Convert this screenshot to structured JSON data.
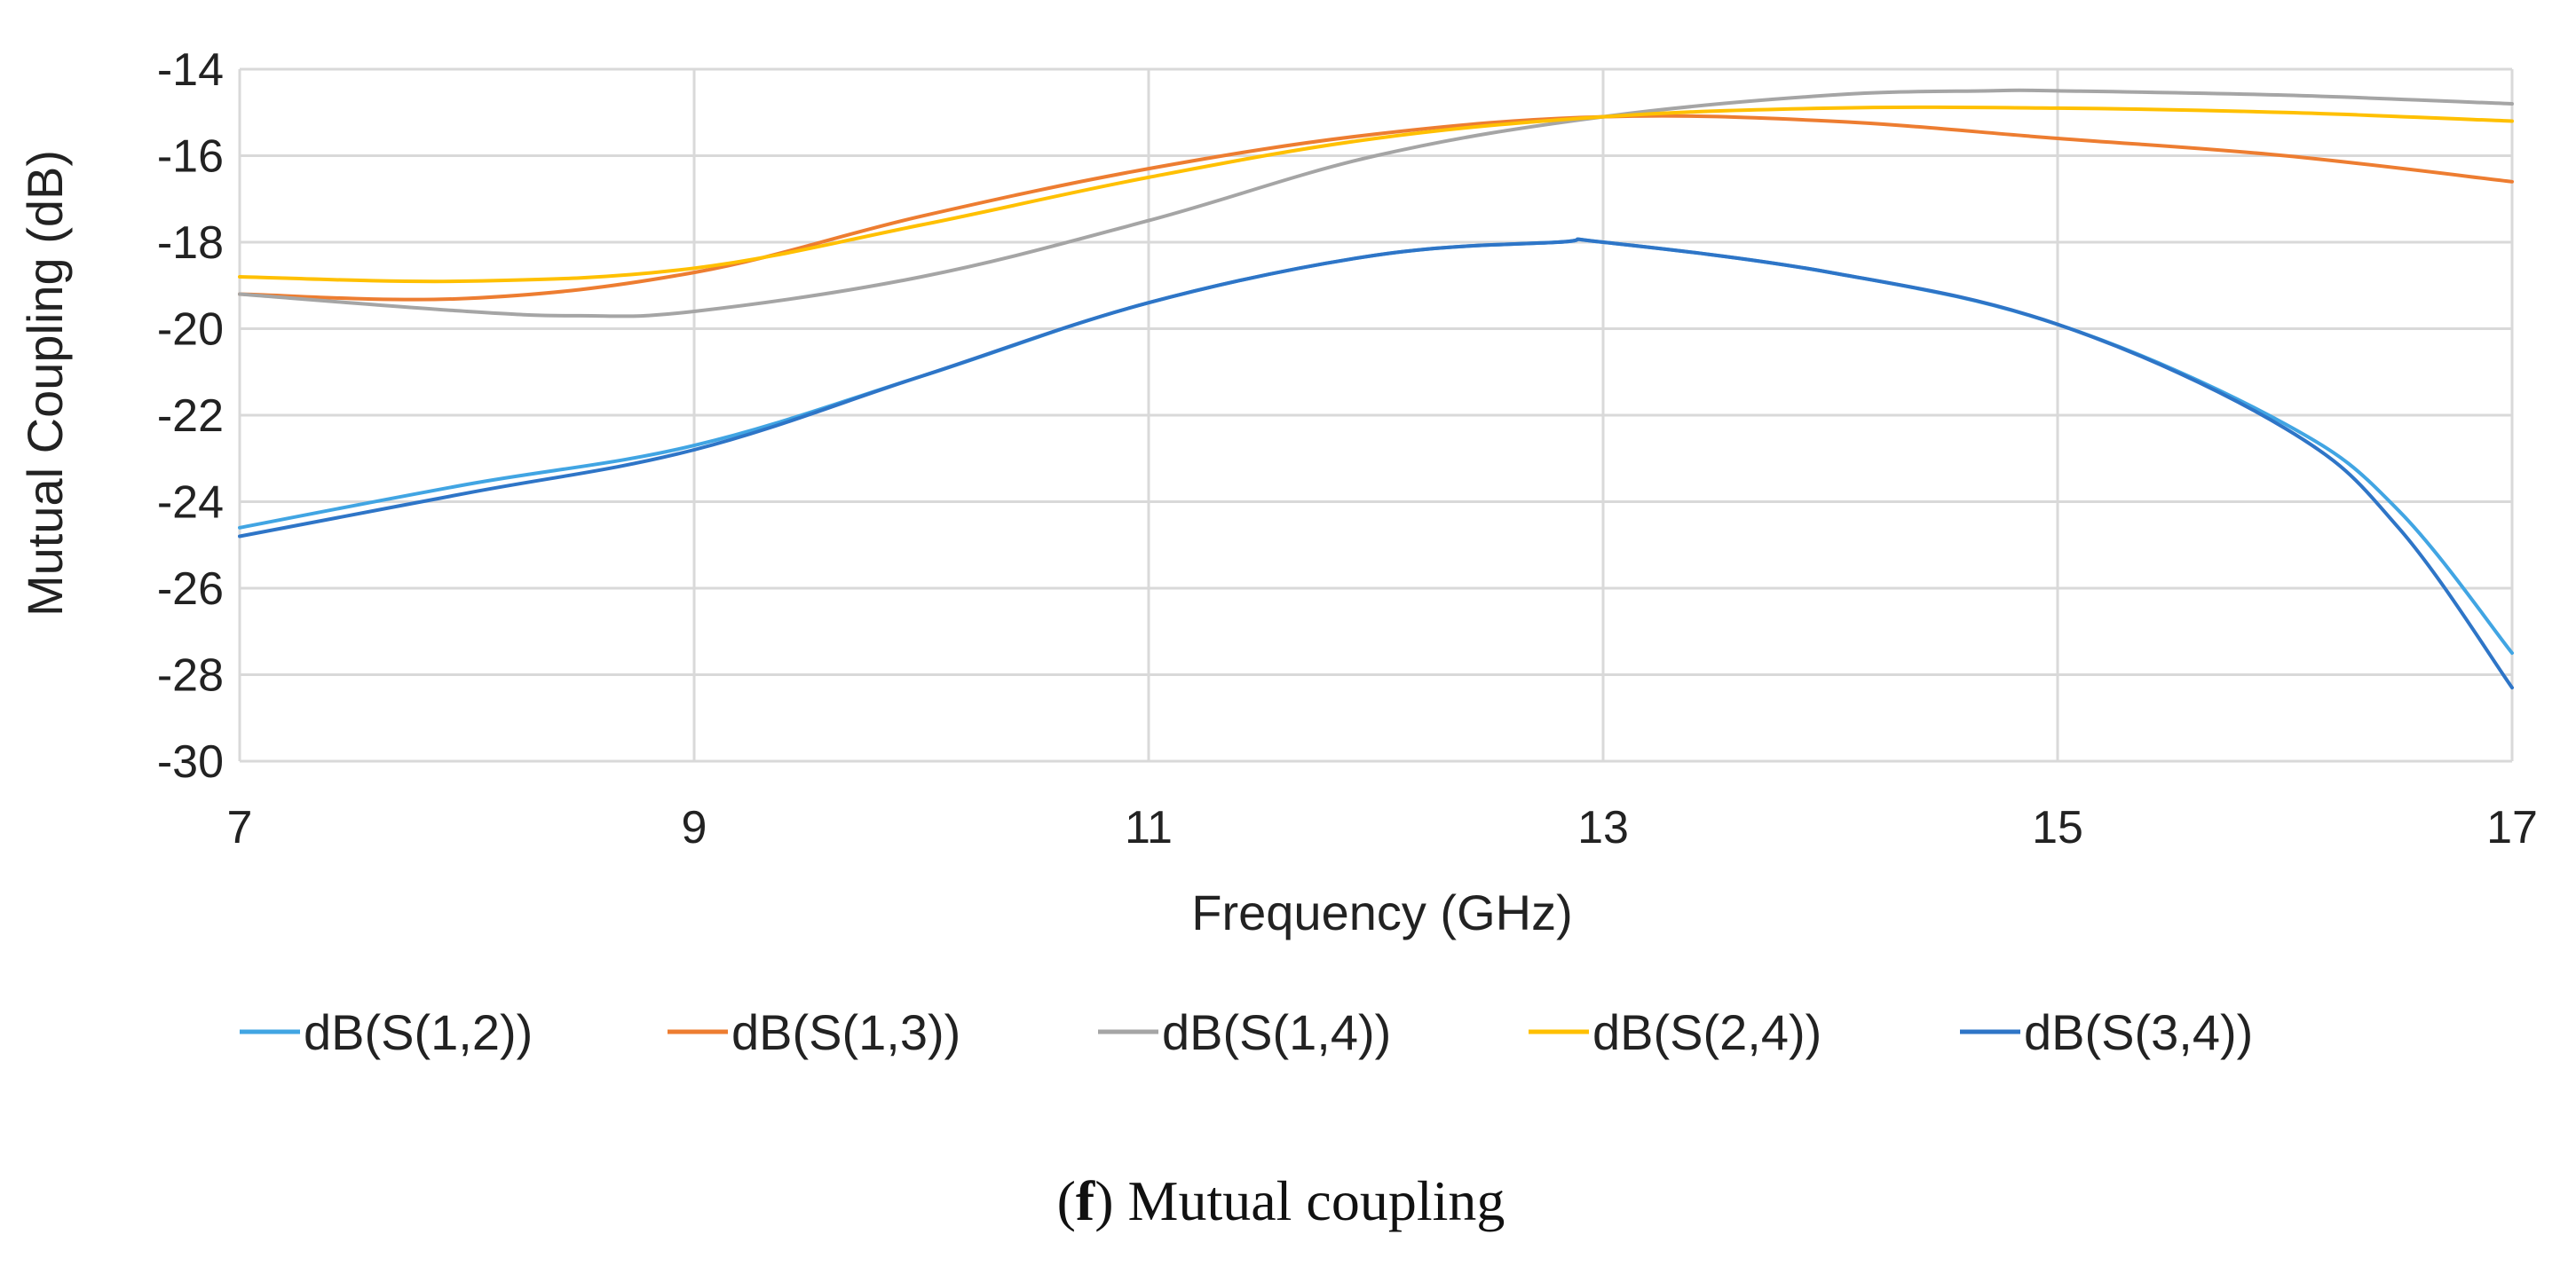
{
  "chart_data": {
    "type": "line",
    "title": "",
    "xlabel": "Frequency (GHz)",
    "ylabel": "Mutual Coupling (dB)",
    "xlim": [
      7,
      17
    ],
    "ylim": [
      -30,
      -14
    ],
    "xticks": [
      7,
      9,
      11,
      13,
      15,
      17
    ],
    "yticks": [
      -14,
      -16,
      -18,
      -20,
      -22,
      -24,
      -26,
      -28,
      -30
    ],
    "grid": true,
    "legend": "bottom",
    "series": [
      {
        "name": "dB(S(1,2))",
        "color": "#41a5e3",
        "x": [
          7,
          8,
          9,
          10,
          11,
          12,
          12.8,
          13,
          14,
          15,
          16,
          16.5,
          17
        ],
        "y": [
          -24.6,
          -23.6,
          -22.7,
          -21.1,
          -19.4,
          -18.3,
          -18.0,
          -18.0,
          -18.7,
          -19.9,
          -22.2,
          -24.2,
          -27.5
        ]
      },
      {
        "name": "dB(S(1,3))",
        "color": "#ed7d31",
        "x": [
          7,
          8,
          9,
          10,
          11,
          12,
          13,
          14,
          15,
          16,
          17
        ],
        "y": [
          -19.2,
          -19.3,
          -18.7,
          -17.4,
          -16.3,
          -15.5,
          -15.1,
          -15.2,
          -15.6,
          -16.0,
          -16.6
        ]
      },
      {
        "name": "dB(S(1,4))",
        "color": "#a5a5a5",
        "x": [
          7,
          8,
          8.5,
          9,
          10,
          11,
          12,
          13,
          14,
          14.7,
          15,
          16,
          17
        ],
        "y": [
          -19.2,
          -19.6,
          -19.7,
          -19.6,
          -18.8,
          -17.5,
          -16.0,
          -15.1,
          -14.6,
          -14.5,
          -14.5,
          -14.6,
          -14.8
        ]
      },
      {
        "name": "dB(S(2,4))",
        "color": "#ffc000",
        "x": [
          7,
          8,
          9,
          10,
          11,
          12,
          13,
          14,
          15,
          16,
          17
        ],
        "y": [
          -18.8,
          -18.9,
          -18.6,
          -17.6,
          -16.5,
          -15.6,
          -15.1,
          -14.9,
          -14.9,
          -15.0,
          -15.2
        ]
      },
      {
        "name": "dB(S(3,4))",
        "color": "#2e75c7",
        "x": [
          7,
          8,
          9,
          10,
          11,
          12,
          12.8,
          13,
          14,
          15,
          16,
          16.5,
          17
        ],
        "y": [
          -24.8,
          -23.8,
          -22.8,
          -21.1,
          -19.4,
          -18.3,
          -18.0,
          -18.0,
          -18.7,
          -19.9,
          -22.3,
          -24.6,
          -28.3
        ]
      }
    ]
  },
  "caption": {
    "letter": "f",
    "text": " Mutual coupling"
  }
}
